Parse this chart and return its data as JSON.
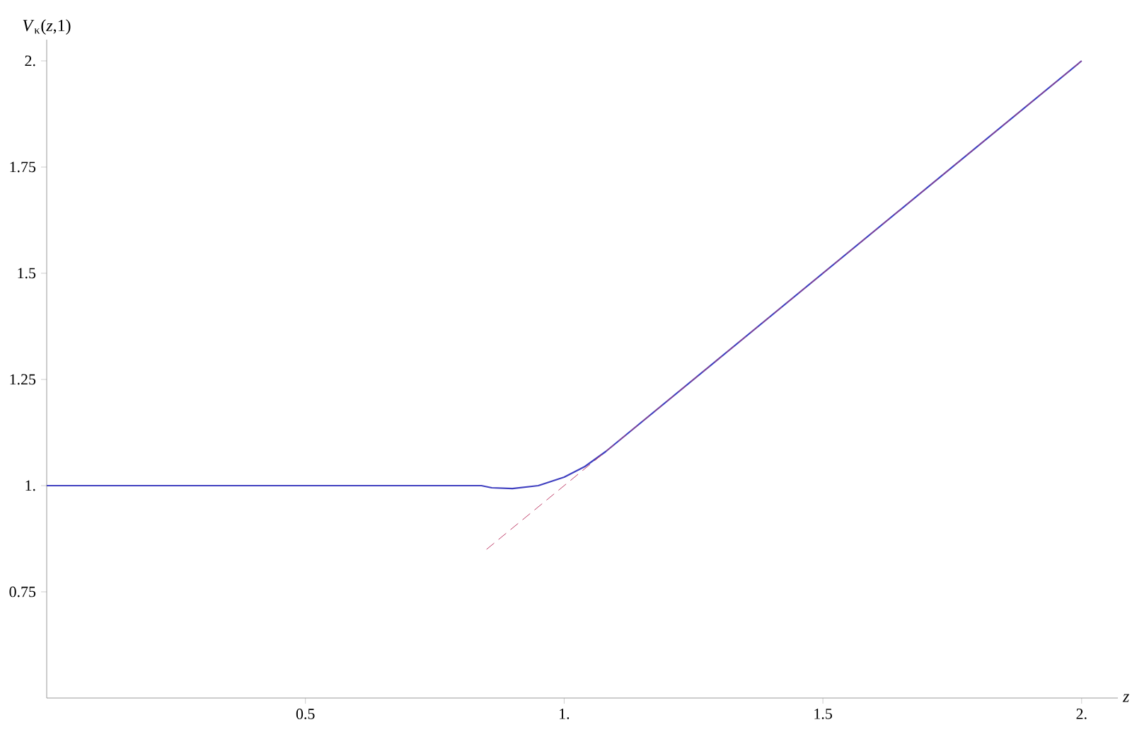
{
  "chart_data": {
    "type": "line",
    "xlabel": "z",
    "ylabel": "*V*$_{κ}$(*z*,1)",
    "xlim": [
      0,
      2.07
    ],
    "ylim": [
      0.5,
      2.05
    ],
    "xticks": [
      0.5,
      {
        "value": 1,
        "label": "1."
      },
      1.5,
      {
        "value": 2,
        "label": "2."
      }
    ],
    "yticks": [
      0.75,
      {
        "value": 1,
        "label": "1."
      },
      1.25,
      1.5,
      1.75,
      {
        "value": 2,
        "label": "2."
      }
    ],
    "series": [
      {
        "color": "#4040c0",
        "line_style": "solid",
        "x": [
          0,
          0.84,
          0.86,
          0.9,
          0.95,
          1.0,
          1.04,
          1.08,
          2.0
        ],
        "values": [
          1,
          1,
          0.995,
          0.993,
          1.0,
          1.02,
          1.045,
          1.08,
          2.0
        ]
      },
      {
        "color": "#c0406a",
        "line_style": "dashed",
        "x": [
          0.85,
          2.0
        ],
        "values": [
          0.85,
          2.0
        ]
      }
    ]
  }
}
